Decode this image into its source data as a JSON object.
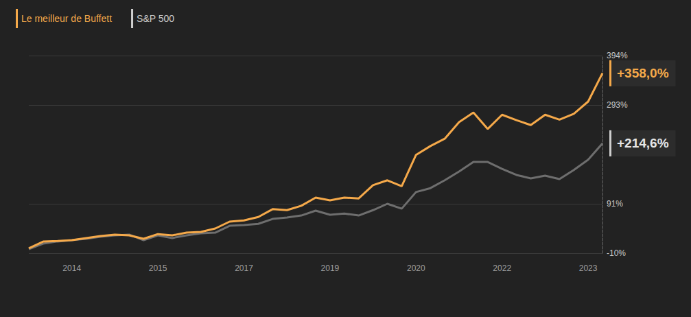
{
  "chart_data": {
    "type": "line",
    "categories": [
      null,
      null,
      null,
      "2014",
      null,
      null,
      null,
      null,
      null,
      "2015",
      null,
      null,
      null,
      null,
      null,
      "2017",
      null,
      null,
      null,
      null,
      null,
      "2019",
      null,
      null,
      null,
      null,
      null,
      "2020",
      null,
      null,
      null,
      null,
      null,
      "2022",
      null,
      null,
      null,
      null,
      null,
      "2023",
      null
    ],
    "series": [
      {
        "name": "Le meilleur de Buffett",
        "color": "#f5a94a",
        "values": [
          0,
          13.8,
          15,
          16.6,
          21,
          25,
          28,
          26.5,
          19.5,
          29,
          26.5,
          32,
          33.5,
          40.5,
          54.5,
          57,
          64,
          80,
          78,
          87,
          103.6,
          98,
          103.6,
          102,
          129,
          139,
          127,
          191,
          209,
          224,
          258,
          277.5,
          244,
          273,
          262,
          252,
          273,
          263,
          275,
          300,
          358.0
        ]
      },
      {
        "name": "S&P 500",
        "color": "#6e6e6e",
        "values": [
          -1.6,
          9.6,
          14,
          16.6,
          19.5,
          23.7,
          26.5,
          28,
          16.6,
          26.5,
          21,
          26.5,
          30.7,
          32,
          46,
          47.5,
          50,
          60,
          63,
          67,
          77,
          68.5,
          71,
          67,
          78,
          91,
          81,
          115,
          123,
          139,
          157,
          176.5,
          176.5,
          162.5,
          150,
          143,
          148.5,
          141.5,
          160,
          181,
          214.6
        ]
      }
    ],
    "ylim": [
      -10,
      394
    ],
    "yticks": [
      {
        "value": -10,
        "label": "-10%"
      },
      {
        "value": 91,
        "label": "91%"
      },
      {
        "value": 293,
        "label": "293%"
      },
      {
        "value": 394,
        "label": "394%"
      }
    ],
    "grid": true,
    "legend": "top-left",
    "annotations": [
      {
        "series": "Le meilleur de Buffett",
        "text": "+358,0%"
      },
      {
        "series": "S&P 500",
        "text": "+214,6%"
      }
    ]
  }
}
